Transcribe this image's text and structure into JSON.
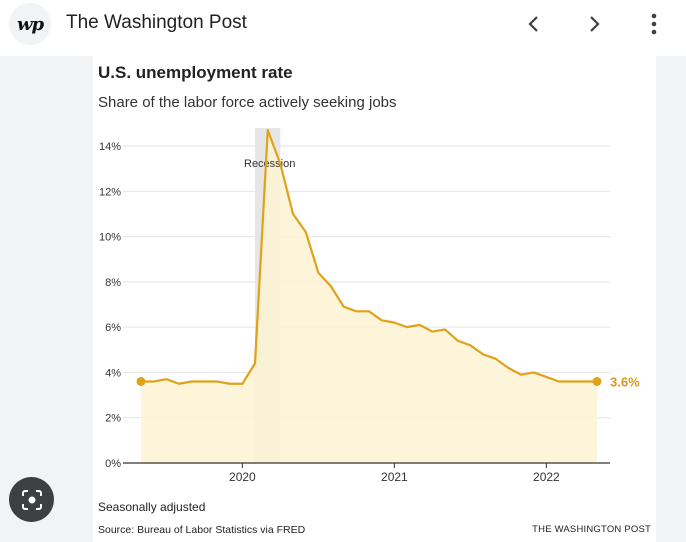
{
  "app": {
    "site_title": "The Washington Post",
    "logo_text": "wp",
    "icons": {
      "back": "chevron-left-icon",
      "forward": "chevron-right-icon",
      "menu": "more-vert-icon",
      "lens": "lens-search-icon"
    }
  },
  "chart": {
    "footnote": "Seasonally adjusted",
    "source": "Source: Bureau of Labor Statistics via FRED",
    "credit": "THE WASHINGTON POST"
  },
  "chart_data": {
    "type": "area",
    "title": "U.S. unemployment rate",
    "subtitle": "Share of the labor force actively seeking jobs",
    "xlabel": "",
    "ylabel": "",
    "ylim": [
      0,
      14
    ],
    "xlim": [
      2019.333,
      2022.333
    ],
    "yticks": [
      0,
      2,
      4,
      6,
      8,
      10,
      12,
      14
    ],
    "ytick_labels": [
      "0%",
      "2%",
      "4%",
      "6%",
      "8%",
      "10%",
      "12%",
      "14%"
    ],
    "xticks": [
      2020,
      2021,
      2022
    ],
    "xtick_labels": [
      "2020",
      "2021",
      "2022"
    ],
    "recession": {
      "label": "Recession",
      "start": 2020.083,
      "end": 2020.25
    },
    "end_label": "3.6%",
    "x": [
      2019.333,
      2019.417,
      2019.5,
      2019.583,
      2019.667,
      2019.75,
      2019.833,
      2019.917,
      2020.0,
      2020.083,
      2020.167,
      2020.25,
      2020.333,
      2020.417,
      2020.5,
      2020.583,
      2020.667,
      2020.75,
      2020.833,
      2020.917,
      2021.0,
      2021.083,
      2021.167,
      2021.25,
      2021.333,
      2021.417,
      2021.5,
      2021.583,
      2021.667,
      2021.75,
      2021.833,
      2021.917,
      2022.0,
      2022.083,
      2022.167,
      2022.25,
      2022.333
    ],
    "values": [
      3.6,
      3.6,
      3.7,
      3.5,
      3.6,
      3.6,
      3.6,
      3.5,
      3.5,
      4.4,
      14.7,
      13.2,
      11.0,
      10.2,
      8.4,
      7.8,
      6.9,
      6.7,
      6.7,
      6.3,
      6.2,
      6.0,
      6.1,
      5.8,
      5.9,
      5.4,
      5.2,
      4.8,
      4.6,
      4.2,
      3.9,
      4.0,
      3.8,
      3.6,
      3.6,
      3.6,
      3.6
    ],
    "colors": {
      "line": "#e0a21b",
      "fill": "#fdf3d2",
      "recession": "#e6e6e6",
      "grid": "#e3e3e3",
      "axis": "#333333",
      "end_label": "#d9961a"
    }
  }
}
